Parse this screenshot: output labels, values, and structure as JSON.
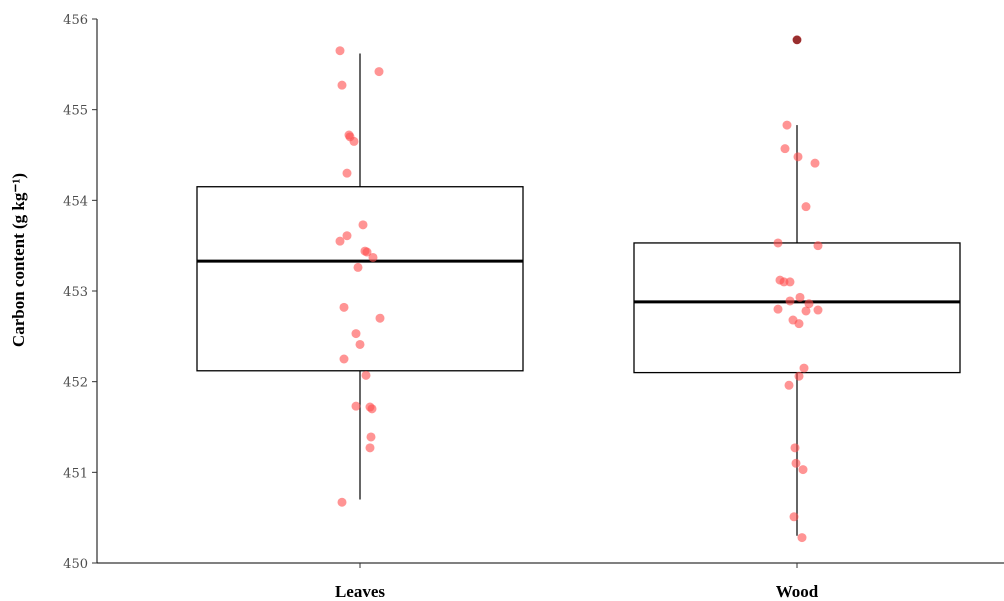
{
  "chart_data": {
    "type": "box",
    "ylabel": "Carbon content (g kg⁻¹)",
    "ylim": [
      450,
      456
    ],
    "yticks": [
      "450",
      "451",
      "452",
      "453",
      "454",
      "455",
      "456"
    ],
    "categories": [
      "Leaves",
      "Wood"
    ],
    "boxes": [
      {
        "category": "Leaves",
        "whisker_low": 450.7,
        "q1": 452.12,
        "median": 453.33,
        "q3": 454.15,
        "whisker_high": 455.62,
        "outliers": []
      },
      {
        "category": "Wood",
        "whisker_low": 450.3,
        "q1": 452.1,
        "median": 452.88,
        "q3": 453.53,
        "whisker_high": 454.83,
        "outliers": [
          455.77
        ]
      }
    ],
    "points": [
      {
        "category": "Leaves",
        "y": [
          455.65,
          455.27,
          455.42,
          454.7,
          454.72,
          454.65,
          454.3,
          453.73,
          453.61,
          453.55,
          453.43,
          453.44,
          453.37,
          453.26,
          452.82,
          452.7,
          452.53,
          452.41,
          452.25,
          452.07,
          451.73,
          451.7,
          451.72,
          451.39,
          451.27,
          450.67
        ]
      },
      {
        "category": "Wood",
        "y": [
          455.77,
          454.83,
          454.57,
          454.48,
          454.41,
          453.93,
          453.53,
          453.5,
          453.12,
          453.1,
          453.1,
          452.93,
          452.89,
          452.86,
          452.8,
          452.78,
          452.79,
          452.68,
          452.64,
          452.15,
          452.06,
          451.96,
          451.27,
          451.1,
          451.03,
          450.51,
          450.28
        ]
      }
    ],
    "outlier_color": "#000000",
    "point_color": "#ff4d4d",
    "grid": false,
    "legend": "none"
  }
}
